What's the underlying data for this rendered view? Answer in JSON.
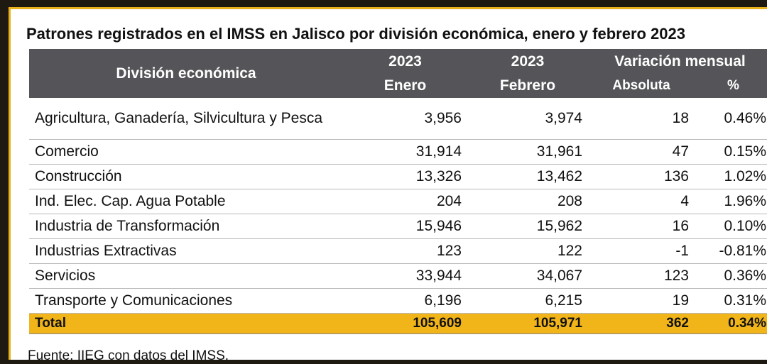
{
  "title": "Patrones registrados en el IMSS en Jalisco por división económica, enero y febrero 2023",
  "table": {
    "header": {
      "division": "División económica",
      "jan_year": "2023",
      "jan_month": "Enero",
      "feb_year": "2023",
      "feb_month": "Febrero",
      "variation": "Variación mensual",
      "absolute": "Absoluta",
      "percent": "%"
    },
    "rows": [
      {
        "name": "Agricultura, Ganadería, Silvicultura y Pesca",
        "jan": "3,956",
        "feb": "3,974",
        "abs": "18",
        "pct": "0.46%"
      },
      {
        "name": "Comercio",
        "jan": "31,914",
        "feb": "31,961",
        "abs": "47",
        "pct": "0.15%"
      },
      {
        "name": "Construcción",
        "jan": "13,326",
        "feb": "13,462",
        "abs": "136",
        "pct": "1.02%"
      },
      {
        "name": "Ind. Elec. Cap. Agua Potable",
        "jan": "204",
        "feb": "208",
        "abs": "4",
        "pct": "1.96%"
      },
      {
        "name": "Industria de Transformación",
        "jan": "15,946",
        "feb": "15,962",
        "abs": "16",
        "pct": "0.10%"
      },
      {
        "name": "Industrias Extractivas",
        "jan": "123",
        "feb": "122",
        "abs": "-1",
        "pct": "-0.81%"
      },
      {
        "name": "Servicios",
        "jan": "33,944",
        "feb": "34,067",
        "abs": "123",
        "pct": "0.36%"
      },
      {
        "name": "Transporte y Comunicaciones",
        "jan": "6,196",
        "feb": "6,215",
        "abs": "19",
        "pct": "0.31%"
      }
    ],
    "total": {
      "name": "Total",
      "jan": "105,609",
      "feb": "105,971",
      "abs": "362",
      "pct": "0.34%"
    }
  },
  "source": "Fuente: IIEG con datos del IMSS.",
  "colors": {
    "header_bg": "#555559",
    "total_bg": "#f2b519",
    "frame_accent": "#e9b21b"
  }
}
